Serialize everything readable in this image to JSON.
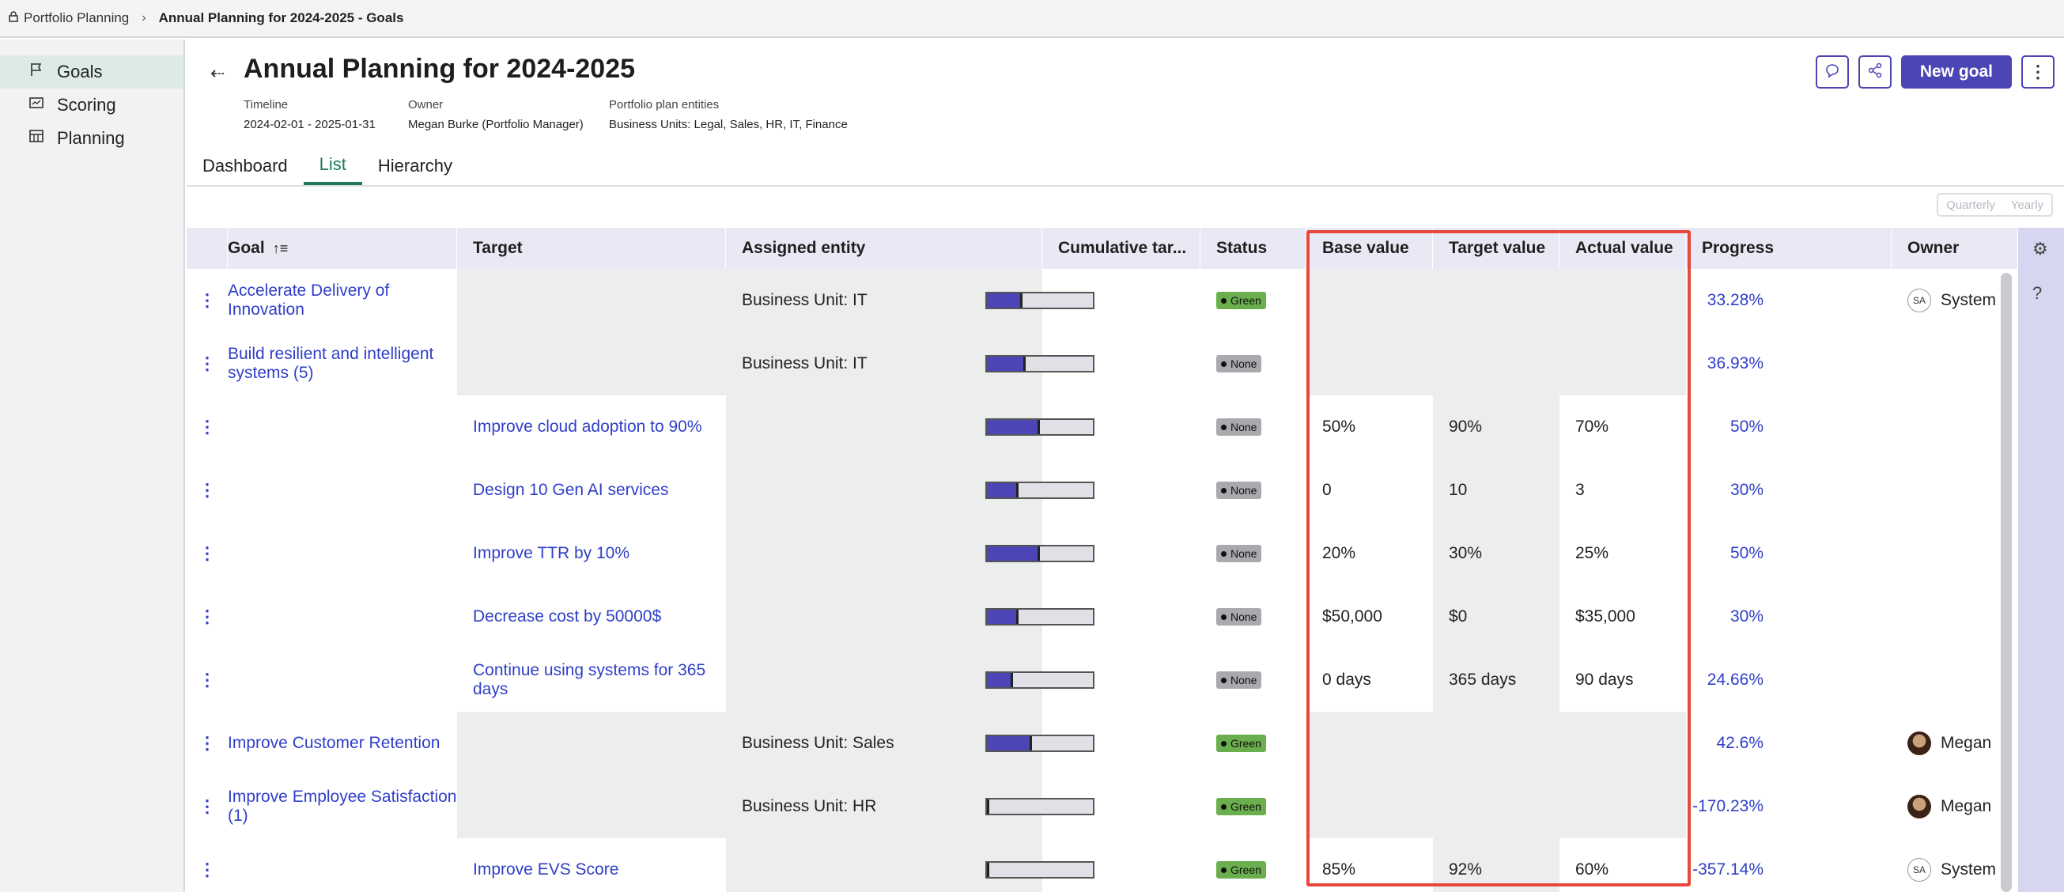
{
  "breadcrumb": {
    "home": "Portfolio Planning",
    "current": "Annual Planning for 2024-2025 - Goals"
  },
  "nav": [
    {
      "label": "Goals",
      "icon": "flag-icon",
      "active": true
    },
    {
      "label": "Scoring",
      "icon": "scoring-icon",
      "active": false
    },
    {
      "label": "Planning",
      "icon": "planning-icon",
      "active": false
    }
  ],
  "header": {
    "title": "Annual Planning for 2024-2025",
    "timeline_label": "Timeline",
    "timeline_value": "2024-02-01 - 2025-01-31",
    "owner_label": "Owner",
    "owner_value": "Megan Burke (Portfolio Manager)",
    "entities_label": "Portfolio plan entities",
    "entities_value": "Business Units: Legal, Sales, HR, IT, Finance",
    "new_goal": "New goal"
  },
  "tabs": [
    "Dashboard",
    "List",
    "Hierarchy"
  ],
  "period": [
    "Quarterly",
    "Yearly"
  ],
  "columns": [
    "Goal",
    "Target",
    "Assigned entity",
    "Cumulative tar...",
    "Status",
    "Base value",
    "Target value",
    "Actual value",
    "Progress",
    "Owner"
  ],
  "rows": [
    {
      "goal": "Accelerate Delivery of Innovation",
      "target": "",
      "entity": "Business Unit: IT",
      "cumulative": "",
      "status": "Green",
      "base": "",
      "tval": "",
      "actual": "",
      "progress": "33.28%",
      "pct": 33.28,
      "owner": "System",
      "avatar": "SA"
    },
    {
      "goal": "Build resilient and intelligent systems (5)",
      "target": "",
      "entity": "Business Unit: IT",
      "cumulative": "",
      "status": "None",
      "base": "",
      "tval": "",
      "actual": "",
      "progress": "36.93%",
      "pct": 36.93,
      "owner": "",
      "avatar": ""
    },
    {
      "goal": "",
      "target": "Improve cloud adoption to 90%",
      "entity": "",
      "cumulative": "false",
      "status": "None",
      "base": "50%",
      "tval": "90%",
      "actual": "70%",
      "progress": "50%",
      "pct": 50,
      "owner": "",
      "avatar": ""
    },
    {
      "goal": "",
      "target": "Design 10 Gen AI services",
      "entity": "",
      "cumulative": "false",
      "status": "None",
      "base": "0",
      "tval": "10",
      "actual": "3",
      "progress": "30%",
      "pct": 30,
      "owner": "",
      "avatar": ""
    },
    {
      "goal": "",
      "target": "Improve TTR by 10%",
      "entity": "",
      "cumulative": "false",
      "status": "None",
      "base": "20%",
      "tval": "30%",
      "actual": "25%",
      "progress": "50%",
      "pct": 50,
      "owner": "",
      "avatar": ""
    },
    {
      "goal": "",
      "target": "Decrease cost by 50000$",
      "entity": "",
      "cumulative": "false",
      "status": "None",
      "base": "$50,000",
      "tval": "$0",
      "actual": "$35,000",
      "progress": "30%",
      "pct": 30,
      "owner": "",
      "avatar": ""
    },
    {
      "goal": "",
      "target": "Continue using systems for 365 days",
      "entity": "",
      "cumulative": "false",
      "status": "None",
      "base": "0 days",
      "tval": "365 days",
      "actual": "90 days",
      "progress": "24.66%",
      "pct": 24.66,
      "owner": "",
      "avatar": ""
    },
    {
      "goal": "Improve Customer Retention",
      "target": "",
      "entity": "Business Unit: Sales",
      "cumulative": "",
      "status": "Green",
      "base": "",
      "tval": "",
      "actual": "",
      "progress": "42.6%",
      "pct": 42.6,
      "owner": "Megan",
      "avatar": "photo"
    },
    {
      "goal": "Improve Employee Satisfaction (1)",
      "target": "",
      "entity": "Business Unit: HR",
      "cumulative": "",
      "status": "Green",
      "base": "",
      "tval": "",
      "actual": "",
      "progress": "-170.23%",
      "pct": 0,
      "owner": "Megan",
      "avatar": "photo"
    },
    {
      "goal": "",
      "target": "Improve EVS Score",
      "entity": "",
      "cumulative": "false",
      "status": "Green",
      "base": "85%",
      "tval": "92%",
      "actual": "60%",
      "progress": "-357.14%",
      "pct": 0,
      "owner": "System",
      "avatar": "SA"
    }
  ]
}
